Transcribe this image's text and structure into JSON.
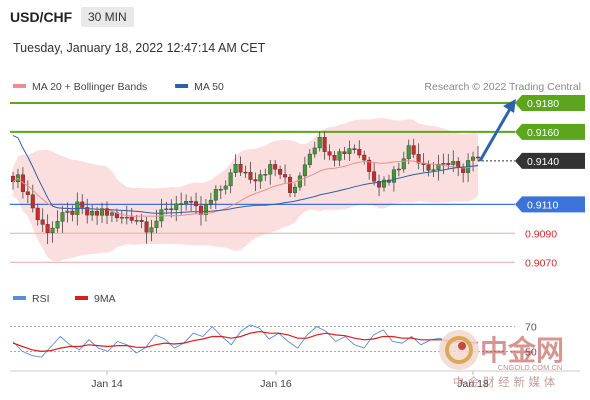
{
  "header": {
    "symbol": "USD/CHF",
    "timeframe": "30 MIN",
    "datetime": "Tuesday, January 18, 2022 12:47:14 AM CET"
  },
  "legend": {
    "items": [
      {
        "label": "MA 20 + Bollinger Bands",
        "color": "#f08c8c"
      },
      {
        "label": "MA 50",
        "color": "#2d5fa8"
      }
    ],
    "credit": "Research © 2022 Trading Central"
  },
  "rsi_legend": {
    "items": [
      {
        "label": "RSI",
        "color": "#5b8ad8"
      },
      {
        "label": "9MA",
        "color": "#d81e1e"
      }
    ]
  },
  "watermark": {
    "brand": "中金网",
    "url": "CNGOLD.COM.CN",
    "subtitle": "中 金 财 经 新 媒 体"
  },
  "colors": {
    "resistance": "#5ba61c",
    "support": "#3b73d9",
    "weak_support": "#f3a6a6",
    "current": "#333333",
    "candle_up": "#3f9b35",
    "candle_down": "#cf2a2a"
  },
  "chart_data": {
    "type": "candlestick",
    "x_tick_labels": [
      "Jan 14",
      "Jan 16",
      "Jan 18"
    ],
    "ylim": [
      0.9055,
      0.92
    ],
    "levels": [
      {
        "label": "0.9180",
        "value": 0.918,
        "kind": "resistance"
      },
      {
        "label": "0.9160",
        "value": 0.916,
        "kind": "resistance"
      },
      {
        "label": "0.9140",
        "value": 0.914,
        "kind": "current"
      },
      {
        "label": "0.9110",
        "value": 0.911,
        "kind": "support"
      },
      {
        "label": "0.9090",
        "value": 0.909,
        "kind": "weak_support"
      },
      {
        "label": "0.9070",
        "value": 0.907,
        "kind": "weak_support"
      }
    ],
    "price_path": [
      0.913,
      0.9124,
      0.9112,
      0.9096,
      0.9093,
      0.9098,
      0.9102,
      0.9108,
      0.9104,
      0.9101,
      0.9106,
      0.9102,
      0.9099,
      0.9103,
      0.91,
      0.9095,
      0.9099,
      0.9104,
      0.911,
      0.9114,
      0.9107,
      0.9103,
      0.9111,
      0.9119,
      0.9127,
      0.9136,
      0.9132,
      0.9129,
      0.9134,
      0.9135,
      0.9131,
      0.9118,
      0.913,
      0.9146,
      0.9155,
      0.915,
      0.9144,
      0.9147,
      0.9151,
      0.9143,
      0.9134,
      0.9124,
      0.9128,
      0.9135,
      0.915,
      0.9144,
      0.9139,
      0.9135,
      0.914,
      0.9137,
      0.9132,
      0.9141,
      0.914
    ],
    "rsi": {
      "tick_labels": [
        "70",
        "50"
      ],
      "rsi_values": [
        52,
        40,
        35,
        33,
        46,
        58,
        48,
        42,
        54,
        44,
        40,
        52,
        48,
        38,
        45,
        60,
        55,
        44,
        50,
        62,
        58,
        70,
        58,
        48,
        64,
        72,
        68,
        55,
        62,
        52,
        44,
        60,
        70,
        64,
        52,
        58,
        48,
        44,
        60,
        66,
        52,
        50,
        58,
        48,
        54,
        56,
        50,
        52,
        48,
        50
      ],
      "ma_values": [
        50,
        46,
        42,
        40,
        41,
        44,
        46,
        46,
        48,
        47,
        46,
        47,
        47,
        45,
        45,
        48,
        50,
        49,
        50,
        53,
        55,
        58,
        58,
        56,
        58,
        62,
        64,
        62,
        62,
        60,
        56,
        56,
        60,
        62,
        60,
        59,
        56,
        54,
        55,
        58,
        58,
        56,
        56,
        54,
        54,
        54,
        53,
        52,
        51,
        51
      ]
    }
  }
}
